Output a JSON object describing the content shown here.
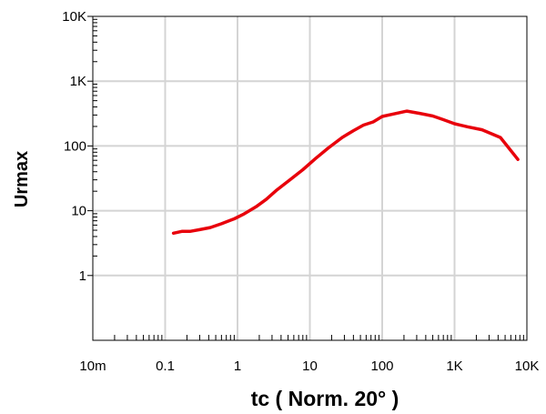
{
  "chart_data": {
    "type": "line",
    "xscale": "log",
    "yscale": "log",
    "xlim": [
      0.01,
      10000
    ],
    "ylim": [
      0.1,
      10000
    ],
    "xlabel": "tc  ( Norm. 20° )",
    "ylabel": "Urmax",
    "x_ticks": [
      {
        "value": 0.01,
        "label": "10m"
      },
      {
        "value": 0.1,
        "label": "0.1"
      },
      {
        "value": 1,
        "label": "1"
      },
      {
        "value": 10,
        "label": "10"
      },
      {
        "value": 100,
        "label": "100"
      },
      {
        "value": 1000,
        "label": "1K"
      },
      {
        "value": 10000,
        "label": "10K"
      }
    ],
    "y_ticks": [
      {
        "value": 1,
        "label": "1"
      },
      {
        "value": 10,
        "label": "10"
      },
      {
        "value": 100,
        "label": "100"
      },
      {
        "value": 1000,
        "label": "1K"
      },
      {
        "value": 10000,
        "label": "10K"
      }
    ],
    "grid": true,
    "series": [
      {
        "color": "#e8000b",
        "points": [
          [
            0.13,
            4.5
          ],
          [
            0.17,
            4.8
          ],
          [
            0.22,
            4.8
          ],
          [
            0.3,
            5.1
          ],
          [
            0.42,
            5.5
          ],
          [
            0.6,
            6.3
          ],
          [
            0.9,
            7.5
          ],
          [
            1.2,
            8.8
          ],
          [
            1.8,
            11.5
          ],
          [
            2.5,
            15
          ],
          [
            3.5,
            21
          ],
          [
            5.5,
            31
          ],
          [
            8,
            43
          ],
          [
            12,
            64
          ],
          [
            18,
            93
          ],
          [
            28,
            135
          ],
          [
            40,
            172
          ],
          [
            55,
            210
          ],
          [
            75,
            235
          ],
          [
            100,
            285
          ],
          [
            150,
            315
          ],
          [
            220,
            345
          ],
          [
            330,
            318
          ],
          [
            500,
            290
          ],
          [
            700,
            255
          ],
          [
            1000,
            220
          ],
          [
            1500,
            198
          ],
          [
            2400,
            178
          ],
          [
            4300,
            135
          ],
          [
            7500,
            62
          ]
        ]
      }
    ]
  }
}
